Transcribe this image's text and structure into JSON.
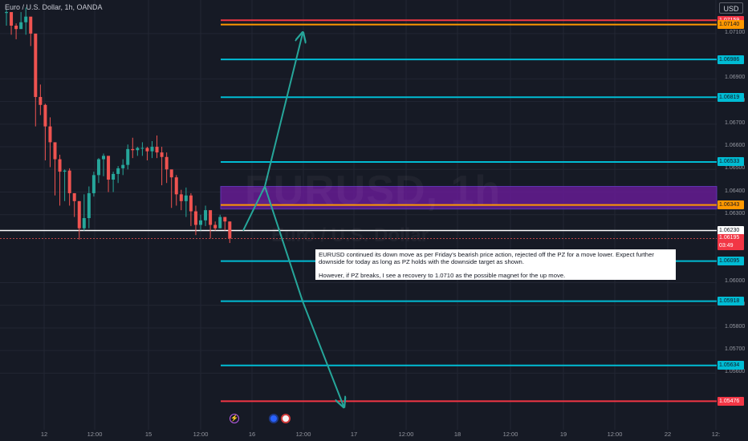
{
  "chart_title": "Euro / U.S. Dollar, 1h, OANDA",
  "currency_label": "USD",
  "watermark": {
    "symbol": "EURUSD, 1h",
    "name": "Euro / U.S. Dollar"
  },
  "note": {
    "paragraph1": "EURUSD continued its down move as per Friday's bearish price action, rejected off the PZ for a move lower. Expect further downside for today as long as PZ holds with the downside target as shown.",
    "paragraph2": "However, if PZ breaks, I see a recovery to 1.0710 as the possible magnet for the up move."
  },
  "colors": {
    "background": "#161a25",
    "bull": "#26a69a",
    "bear": "#ef5350",
    "level_line": "#00bcd4",
    "pz_fill": "#6a1b9a",
    "orange_line": "#ff9800",
    "red_line": "#f23645",
    "arrow": "#26a69a"
  },
  "chart_data": {
    "type": "candlestick",
    "symbol": "EURUSD",
    "timeframe": "1h",
    "y_range": [
      1.0535,
      1.0722
    ],
    "candles": [
      [
        1.07205,
        1.07195,
        1.07135
      ],
      [
        1.07175,
        1.07135,
        1.07095
      ],
      [
        1.07145,
        1.0712,
        1.07075
      ],
      [
        1.07195,
        1.0715,
        1.07135
      ],
      [
        1.07215,
        1.07175,
        1.07095
      ],
      [
        1.0716,
        1.071,
        1.07045
      ],
      [
        1.0687,
        1.0682,
        1.0669
      ],
      [
        1.06875,
        1.06785,
        1.0674
      ],
      [
        1.0679,
        1.0669,
        1.0654
      ],
      [
        1.0673,
        1.0662,
        1.0651
      ],
      [
        1.06595,
        1.06545,
        1.06385
      ],
      [
        1.06565,
        1.0649,
        1.0634
      ],
      [
        1.065,
        1.06495,
        1.0636
      ],
      [
        1.06505,
        1.06395,
        1.0634
      ],
      [
        1.06395,
        1.0636,
        1.0629
      ],
      [
        1.0636,
        1.0624,
        1.0619
      ],
      [
        1.0639,
        1.06285,
        1.0623
      ],
      [
        1.06425,
        1.06395,
        1.0624
      ],
      [
        1.0649,
        1.06475,
        1.0638
      ],
      [
        1.0655,
        1.06545,
        1.0644
      ],
      [
        1.0657,
        1.0656,
        1.0647
      ],
      [
        1.06545,
        1.06455,
        1.064
      ],
      [
        1.0649,
        1.0648,
        1.064
      ],
      [
        1.06515,
        1.06505,
        1.0644
      ],
      [
        1.06545,
        1.0652,
        1.06475
      ],
      [
        1.0661,
        1.0659,
        1.065
      ],
      [
        1.0664,
        1.06585,
        1.0655
      ],
      [
        1.066,
        1.06595,
        1.0656
      ],
      [
        1.0662,
        1.06595,
        1.0656
      ],
      [
        1.066,
        1.0658,
        1.0654
      ],
      [
        1.06625,
        1.066,
        1.0655
      ],
      [
        1.0665,
        1.06575,
        1.0655
      ],
      [
        1.066,
        1.06555,
        1.0643
      ],
      [
        1.06575,
        1.065,
        1.0644
      ],
      [
        1.0649,
        1.06465,
        1.0633
      ],
      [
        1.06475,
        1.0639,
        1.0634
      ],
      [
        1.0641,
        1.0636,
        1.0632
      ],
      [
        1.0642,
        1.06385,
        1.0629
      ],
      [
        1.06395,
        1.06315,
        1.0625
      ],
      [
        1.0634,
        1.06255,
        1.0621
      ],
      [
        1.063,
        1.06275,
        1.0623
      ],
      [
        1.0634,
        1.0632,
        1.0625
      ],
      [
        1.0631,
        1.06255,
        1.06195
      ],
      [
        1.0627,
        1.0624,
        1.0623
      ],
      [
        1.063,
        1.0629,
        1.0624
      ],
      [
        1.0629,
        1.0627,
        1.0623
      ],
      [
        1.0627,
        1.06195,
        1.06175
      ]
    ],
    "levels": [
      {
        "price": 1.07159,
        "label": "1.07159",
        "color": "#f23645"
      },
      {
        "price": 1.0714,
        "label": "1.07140",
        "color": "#ff9800"
      },
      {
        "price": 1.06986,
        "label": "1.06986",
        "color": "#00bcd4"
      },
      {
        "price": 1.06819,
        "label": "1.06819",
        "color": "#00bcd4"
      },
      {
        "price": 1.06533,
        "label": "1.06533",
        "color": "#00bcd4"
      },
      {
        "price": 1.06343,
        "label": "1.06343",
        "color": "#ff9800"
      },
      {
        "price": 1.06095,
        "label": "1.06095",
        "color": "#00bcd4"
      },
      {
        "price": 1.05918,
        "label": "1.05918",
        "color": "#00bcd4"
      },
      {
        "price": 1.05634,
        "label": "1.05634",
        "color": "#00bcd4"
      },
      {
        "price": 1.05476,
        "label": "1.05476",
        "color": "#f23645"
      }
    ],
    "pz_zone": [
      1.06325,
      1.06425
    ],
    "current_price_line": {
      "price": 1.0623,
      "label": "1.06230"
    },
    "last_price": {
      "price": 1.06195,
      "label": "1.06195",
      "countdown": "03:49"
    },
    "price_ticks": [
      "1.07100",
      "1.06900",
      "1.06800",
      "1.06700",
      "1.06600",
      "1.06500",
      "1.06400",
      "1.06300",
      "1.06000",
      "1.05900",
      "1.05800",
      "1.05700",
      "1.05600"
    ],
    "price_tick_values": [
      1.071,
      1.069,
      1.068,
      1.067,
      1.066,
      1.065,
      1.064,
      1.063,
      1.06,
      1.059,
      1.058,
      1.057,
      1.056
    ],
    "time_ticks": [
      "12",
      "12:00",
      "15",
      "12:00",
      "16",
      "12:00",
      "17",
      "12:00",
      "18",
      "12:00",
      "19",
      "12:00",
      "22",
      "12:"
    ],
    "projections": [
      {
        "name": "up-move",
        "points": [
          [
            1.0623,
            0
          ],
          [
            1.06425,
            1
          ],
          [
            1.071,
            2
          ]
        ]
      },
      {
        "name": "down-move",
        "points": [
          [
            1.06425,
            1
          ],
          [
            1.05918,
            2
          ],
          [
            1.05455,
            3
          ]
        ]
      }
    ],
    "events": [
      {
        "icon": "flash-icon"
      },
      {
        "icon": "ecb-flag-icon"
      },
      {
        "icon": "us-flag-icon"
      }
    ]
  }
}
